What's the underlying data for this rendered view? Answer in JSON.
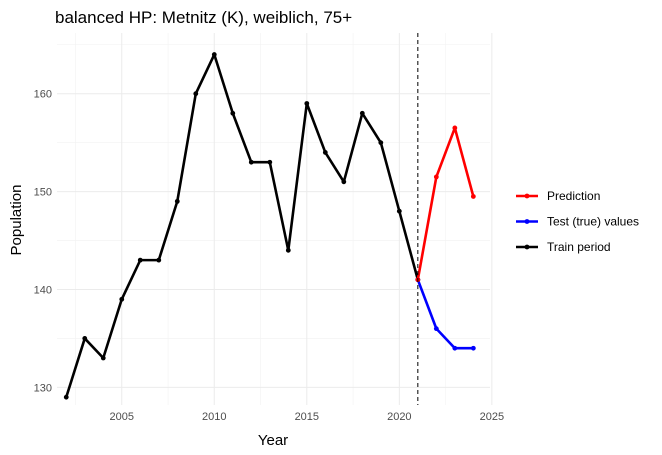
{
  "chart_data": {
    "type": "line",
    "title": "balanced HP: Metnitz (K), weiblich, 75+",
    "xlabel": "Year",
    "ylabel": "Population",
    "xlim": [
      2001.5,
      2024.9
    ],
    "ylim": [
      128.2,
      166.2
    ],
    "x_ticks": [
      2005,
      2010,
      2015,
      2020,
      2025
    ],
    "y_ticks": [
      130,
      140,
      150,
      160
    ],
    "grid": true,
    "legend_position": "right",
    "vline": {
      "x": 2021,
      "style": "dashed",
      "color": "#000000"
    },
    "series": [
      {
        "name": "Train period",
        "color": "#000000",
        "x": [
          2002,
          2003,
          2004,
          2005,
          2006,
          2007,
          2008,
          2009,
          2010,
          2011,
          2012,
          2013,
          2014,
          2015,
          2016,
          2017,
          2018,
          2019,
          2020,
          2021
        ],
        "y": [
          129,
          135,
          133,
          139,
          143,
          143,
          149,
          160,
          164,
          158,
          153,
          153,
          144,
          159,
          154,
          151,
          158,
          155,
          148,
          141
        ]
      },
      {
        "name": "Test (true) values",
        "color": "#0000ff",
        "x": [
          2021,
          2022,
          2023,
          2024
        ],
        "y": [
          141,
          136,
          134,
          134
        ]
      },
      {
        "name": "Prediction",
        "color": "#ff0000",
        "x": [
          2021,
          2022,
          2023,
          2024
        ],
        "y": [
          141,
          151.5,
          156.5,
          149.5
        ]
      }
    ],
    "legend": [
      "Prediction",
      "Test (true) values",
      "Train period"
    ]
  }
}
